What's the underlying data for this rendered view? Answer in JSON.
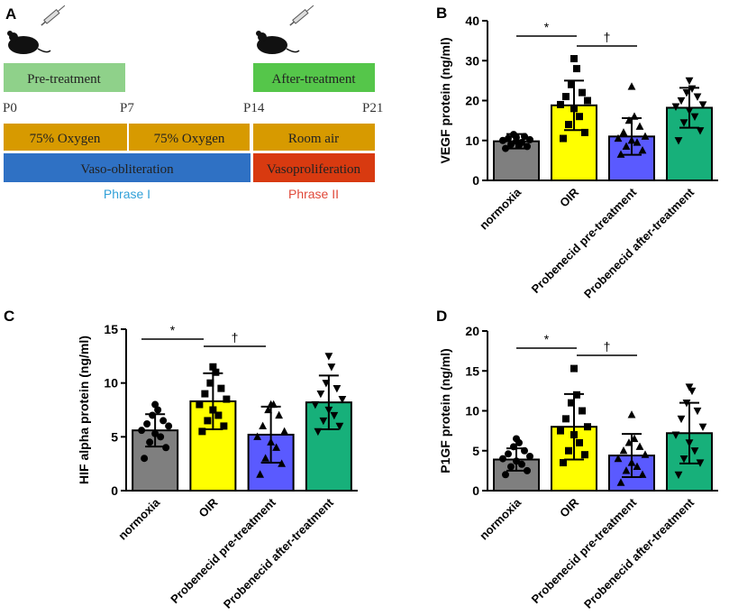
{
  "panel_labels": {
    "a": "A",
    "b": "B",
    "c": "C",
    "d": "D"
  },
  "timeline": {
    "pre_treatment": "Pre-treatment",
    "after_treatment": "After-treatment",
    "days": [
      "P0",
      "P7",
      "P14",
      "P21"
    ],
    "oxygen_1": "75% Oxygen",
    "oxygen_2": "75% Oxygen",
    "room_air": "Room air",
    "vaso_obliteration": "Vaso-obliteration",
    "vasoproliferation": "Vasoproliferation",
    "phase_1": "Phrase I",
    "phase_2": "Phrase II",
    "colors": {
      "treatment": "#8fd18a",
      "treatment_dark": "#55c64a",
      "oxygen": "#d79a00",
      "phase1": "#2f71c4",
      "phase2": "#d83a10",
      "phase1_text": "#31a0d8",
      "phase2_text": "#e0493a"
    }
  },
  "bar_colors": [
    "#7f7f7f",
    "#ffff00",
    "#5a5aff",
    "#17b07a"
  ],
  "markers": [
    "circle",
    "square",
    "triangle-up",
    "triangle-down"
  ],
  "chart_data": [
    {
      "panel": "B",
      "type": "bar",
      "categories": [
        "normoxia",
        "OIR",
        "Probenecid pre-treatment",
        "Probenecid after-treatment"
      ],
      "values": [
        9.8,
        18.8,
        11.0,
        18.2
      ],
      "errors": [
        1.8,
        6.2,
        4.6,
        5.0
      ],
      "points": [
        [
          8.0,
          8.5,
          9.0,
          9.5,
          9.8,
          10.0,
          10.2,
          10.5,
          11.0,
          11.5,
          8.8,
          10.8
        ],
        [
          10.5,
          12.0,
          14.0,
          16.0,
          18.0,
          19.0,
          20.0,
          21.0,
          22.0,
          24.0,
          28.0,
          30.5
        ],
        [
          6.5,
          7.5,
          8.5,
          9.5,
          10.0,
          10.5,
          11.0,
          12.0,
          13.5,
          15.0,
          16.0,
          23.5
        ],
        [
          10.0,
          12.5,
          14.5,
          16.0,
          17.5,
          18.5,
          19.0,
          20.0,
          21.0,
          22.0,
          23.0,
          25.0
        ]
      ],
      "ylabel": "VEGF protein (ng/ml)",
      "ylim": [
        0,
        40
      ],
      "yticks": [
        0,
        10,
        20,
        30,
        40
      ],
      "annotations": [
        {
          "text": "*",
          "from": 0,
          "to": 1
        },
        {
          "text": "†",
          "from": 1,
          "to": 2
        }
      ]
    },
    {
      "panel": "C",
      "type": "bar",
      "categories": [
        "normoxia",
        "OIR",
        "Probenecid pre-treatment",
        "Probenecid after-treatment"
      ],
      "values": [
        5.6,
        8.3,
        5.2,
        8.2
      ],
      "errors": [
        1.5,
        2.6,
        2.6,
        2.5
      ],
      "points": [
        [
          3.0,
          4.0,
          4.5,
          5.0,
          5.3,
          5.6,
          6.0,
          6.2,
          6.5,
          7.0,
          7.5,
          8.0
        ],
        [
          5.5,
          6.0,
          6.5,
          7.0,
          7.5,
          8.0,
          8.5,
          9.0,
          9.5,
          10.0,
          11.0,
          11.5
        ],
        [
          1.5,
          2.5,
          3.0,
          4.0,
          4.5,
          5.0,
          5.5,
          6.0,
          7.0,
          7.5,
          8.0,
          8.0
        ],
        [
          5.5,
          6.0,
          6.5,
          7.0,
          7.5,
          8.0,
          8.5,
          9.0,
          9.5,
          10.0,
          11.5,
          12.5
        ]
      ],
      "ylabel": "HIF alpha protein (ng/ml)",
      "ylim": [
        0,
        15
      ],
      "yticks": [
        0,
        5,
        10,
        15
      ],
      "annotations": [
        {
          "text": "*",
          "from": 0,
          "to": 1
        },
        {
          "text": "†",
          "from": 1,
          "to": 2
        }
      ]
    },
    {
      "panel": "D",
      "type": "bar",
      "categories": [
        "normoxia",
        "OIR",
        "Probenecid pre-treatment",
        "Probenecid after-treatment"
      ],
      "values": [
        3.9,
        8.0,
        4.4,
        7.2
      ],
      "errors": [
        1.4,
        4.1,
        2.7,
        3.8
      ],
      "points": [
        [
          2.0,
          2.5,
          3.0,
          3.3,
          3.7,
          4.0,
          4.3,
          4.6,
          5.0,
          5.5,
          6.0,
          6.5
        ],
        [
          3.5,
          4.5,
          5.0,
          6.0,
          7.0,
          7.5,
          8.0,
          9.0,
          10.0,
          11.0,
          12.0,
          15.3
        ],
        [
          1.0,
          2.0,
          2.5,
          3.0,
          3.5,
          4.0,
          4.5,
          5.0,
          5.5,
          6.0,
          6.5,
          9.5
        ],
        [
          2.0,
          3.5,
          4.0,
          5.0,
          6.0,
          7.0,
          8.0,
          9.0,
          10.0,
          11.0,
          12.5,
          13.0
        ]
      ],
      "ylabel": "P1GF protein (ng/ml)",
      "ylim": [
        0,
        20
      ],
      "yticks": [
        0,
        5,
        10,
        15,
        20
      ],
      "annotations": [
        {
          "text": "*",
          "from": 0,
          "to": 1
        },
        {
          "text": "†",
          "from": 1,
          "to": 2
        }
      ]
    }
  ]
}
